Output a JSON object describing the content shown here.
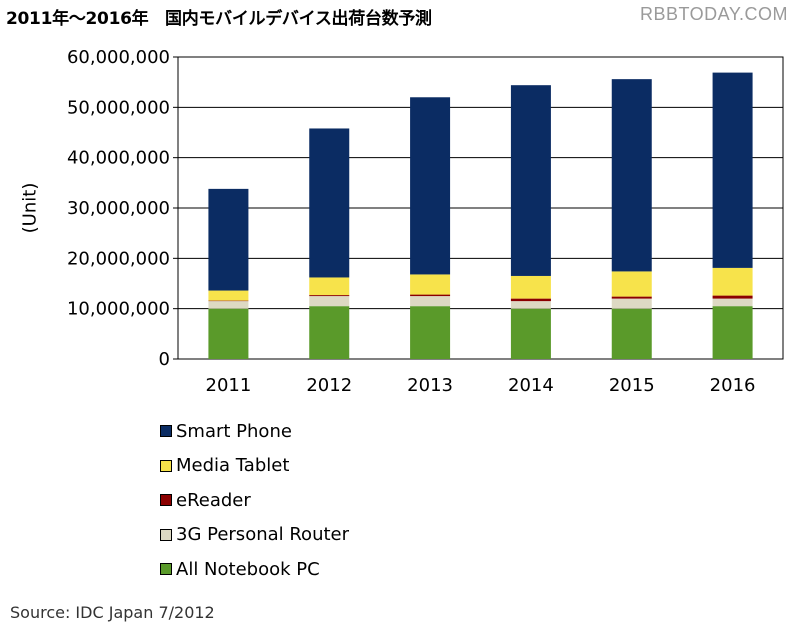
{
  "watermark": "RBBTODAY.COM",
  "source": "Source: IDC Japan 7/2012",
  "chart_data": {
    "type": "bar",
    "stacked": true,
    "title": "2011年～2016年　国内モバイルデバイス出荷台数予測",
    "xlabel": "",
    "ylabel": "(Unit)",
    "ylim": [
      0,
      60000000
    ],
    "yticks": [
      0,
      10000000,
      20000000,
      30000000,
      40000000,
      50000000,
      60000000
    ],
    "ytick_labels": [
      "0",
      "10,000,000",
      "20,000,000",
      "30,000,000",
      "40,000,000",
      "50,000,000",
      "60,000,000"
    ],
    "grid": true,
    "legend_position": "bottom-left",
    "categories": [
      "2011",
      "2012",
      "2013",
      "2014",
      "2015",
      "2016"
    ],
    "series": [
      {
        "name": "All Notebook PC",
        "color": "#5a9a2a",
        "values": [
          10000000,
          10500000,
          10500000,
          10000000,
          10000000,
          10500000
        ]
      },
      {
        "name": "3G Personal Router",
        "color": "#ddd9c3",
        "values": [
          1500000,
          2000000,
          2000000,
          1500000,
          2000000,
          1500000
        ]
      },
      {
        "name": "eReader",
        "color": "#8b0000",
        "values": [
          100000,
          200000,
          300000,
          500000,
          400000,
          600000
        ]
      },
      {
        "name": "Media Tablet",
        "color": "#f7e34b",
        "values": [
          2000000,
          3500000,
          4000000,
          4500000,
          5000000,
          5500000
        ]
      },
      {
        "name": "Smart Phone",
        "color": "#0b2c63",
        "values": [
          20200000,
          29600000,
          35200000,
          37900000,
          38200000,
          38800000
        ]
      }
    ],
    "legend_order": [
      "Smart Phone",
      "Media Tablet",
      "eReader",
      "3G Personal Router",
      "All Notebook PC"
    ]
  }
}
